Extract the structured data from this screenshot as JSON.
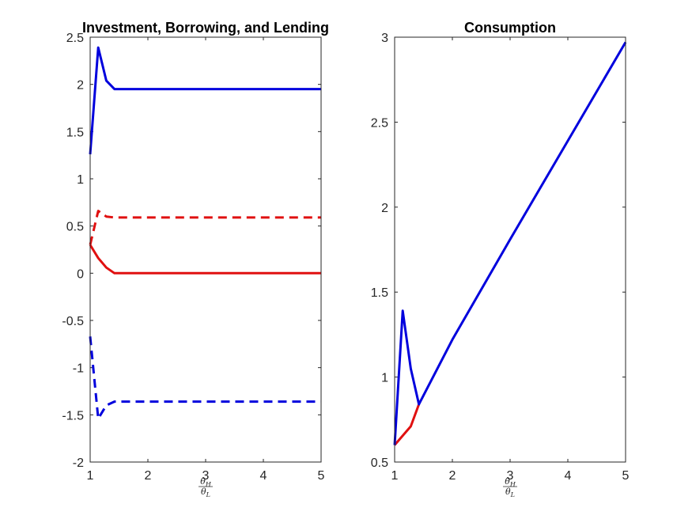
{
  "chart_data": [
    {
      "type": "line",
      "title": "Investment, Borrowing, and Lending",
      "xlabel": {
        "numerator": "θ",
        "numerator_sub": "H",
        "denominator": "θ",
        "denominator_sub": "L"
      },
      "xlim": [
        1,
        5
      ],
      "ylim": [
        -2,
        2.5
      ],
      "xticks": [
        1,
        2,
        3,
        4,
        5
      ],
      "xtick_labels": [
        "1",
        "2",
        "3",
        "4",
        "5"
      ],
      "yticks": [
        -2,
        -1.5,
        -1,
        -0.5,
        0,
        0.5,
        1,
        1.5,
        2,
        2.5
      ],
      "ytick_labels": [
        "-2",
        "-1.5",
        "-1",
        "-0.5",
        "0",
        "0.5",
        "1",
        "1.5",
        "2",
        "2.5"
      ],
      "grid": false,
      "series": [
        {
          "color": "#0000dd",
          "dash": "solid",
          "x": [
            1,
            1.14,
            1.28,
            1.42,
            2,
            3,
            4,
            5
          ],
          "y": [
            1.26,
            2.39,
            2.04,
            1.95,
            1.95,
            1.95,
            1.95,
            1.95
          ]
        },
        {
          "color": "#e01010",
          "dash": "dashed",
          "x": [
            1,
            1.14,
            1.28,
            1.42,
            2,
            3,
            4,
            5
          ],
          "y": [
            0.3,
            0.66,
            0.6,
            0.59,
            0.59,
            0.59,
            0.59,
            0.59
          ]
        },
        {
          "color": "#e01010",
          "dash": "solid",
          "x": [
            1,
            1.14,
            1.28,
            1.42,
            2,
            3,
            4,
            5
          ],
          "y": [
            0.3,
            0.16,
            0.06,
            0.0,
            0.0,
            0.0,
            0.0,
            0.0
          ]
        },
        {
          "color": "#0000dd",
          "dash": "dashed",
          "x": [
            1,
            1.14,
            1.28,
            1.42,
            2,
            3,
            4,
            5
          ],
          "y": [
            -0.67,
            -1.54,
            -1.4,
            -1.36,
            -1.36,
            -1.36,
            -1.36,
            -1.36
          ]
        }
      ]
    },
    {
      "type": "line",
      "title": "Consumption",
      "xlabel": {
        "numerator": "θ",
        "numerator_sub": "H",
        "denominator": "θ",
        "denominator_sub": "L"
      },
      "xlim": [
        1,
        5
      ],
      "ylim": [
        0.5,
        3
      ],
      "xticks": [
        1,
        2,
        3,
        4,
        5
      ],
      "xtick_labels": [
        "1",
        "2",
        "3",
        "4",
        "5"
      ],
      "yticks": [
        0.5,
        1,
        1.5,
        2,
        2.5,
        3
      ],
      "ytick_labels": [
        "0.5",
        "1",
        "1.5",
        "2",
        "2.5",
        "3"
      ],
      "grid": false,
      "series": [
        {
          "color": "#e01010",
          "dash": "solid",
          "x": [
            1,
            1.28,
            1.42
          ],
          "y": [
            0.6,
            0.71,
            0.84
          ]
        },
        {
          "color": "#0000dd",
          "dash": "solid",
          "x": [
            1,
            1.14,
            1.28,
            1.42,
            2,
            3,
            4,
            5
          ],
          "y": [
            0.6,
            1.39,
            1.05,
            0.84,
            1.22,
            1.81,
            2.39,
            2.97
          ]
        }
      ]
    }
  ]
}
